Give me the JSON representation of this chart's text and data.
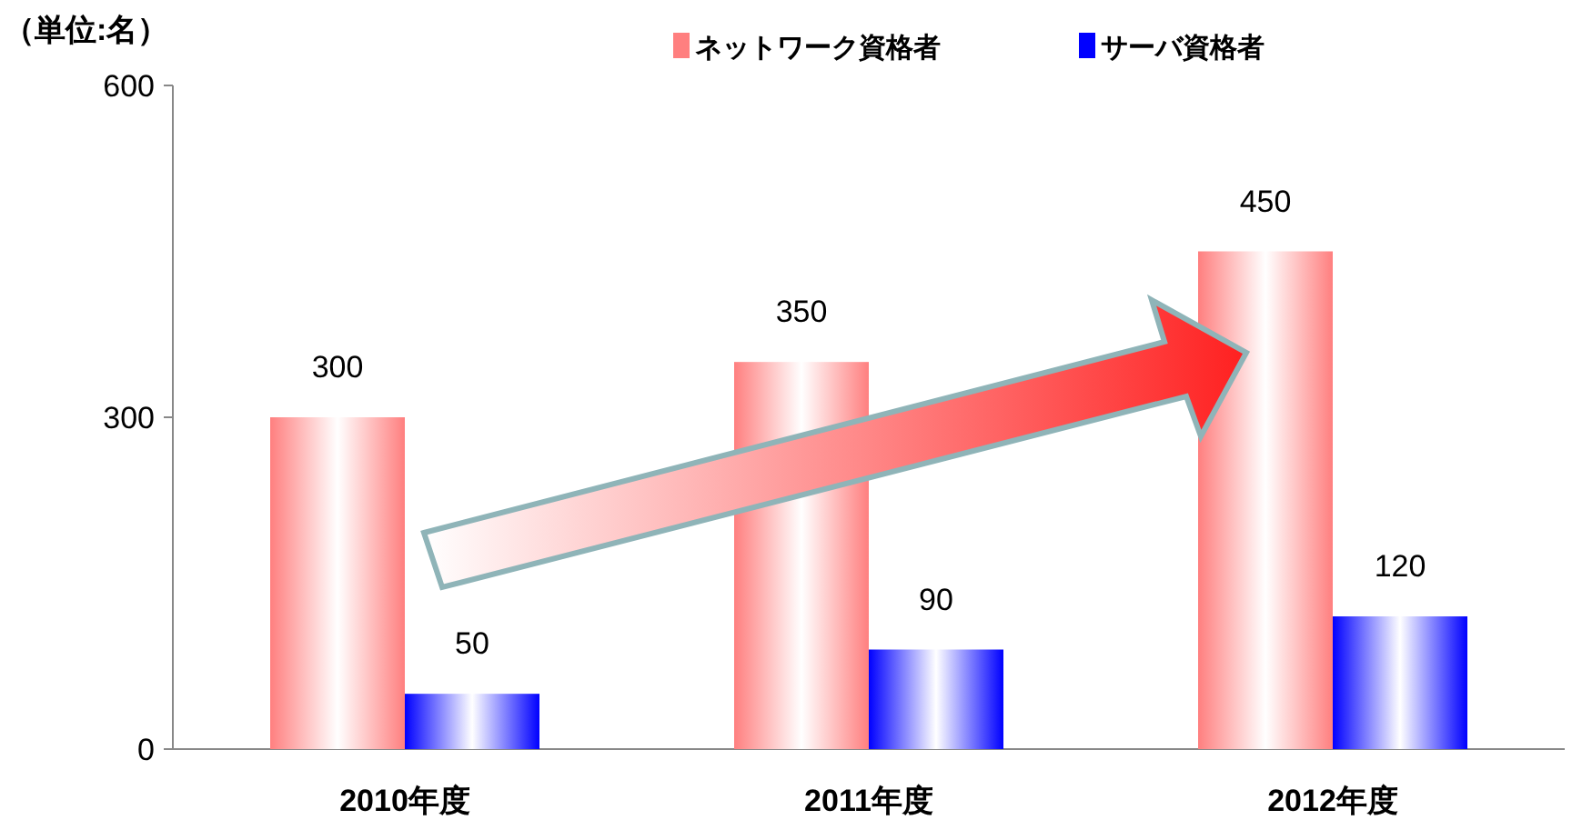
{
  "chart_data": {
    "type": "bar",
    "ylabel": "（単位:名）",
    "categories": [
      "2010年度",
      "2011年度",
      "2012年度"
    ],
    "series": [
      {
        "name": "ネットワーク資格者",
        "color": "#ff7f7f",
        "values": [
          300,
          350,
          450
        ]
      },
      {
        "name": "サーバ資格者",
        "color": "#0000ff",
        "values": [
          50,
          90,
          120
        ]
      }
    ],
    "ylim": [
      0,
      600
    ],
    "yticks": [
      0,
      300,
      600
    ],
    "data_labels": true,
    "legend": "top right",
    "grid": false
  }
}
